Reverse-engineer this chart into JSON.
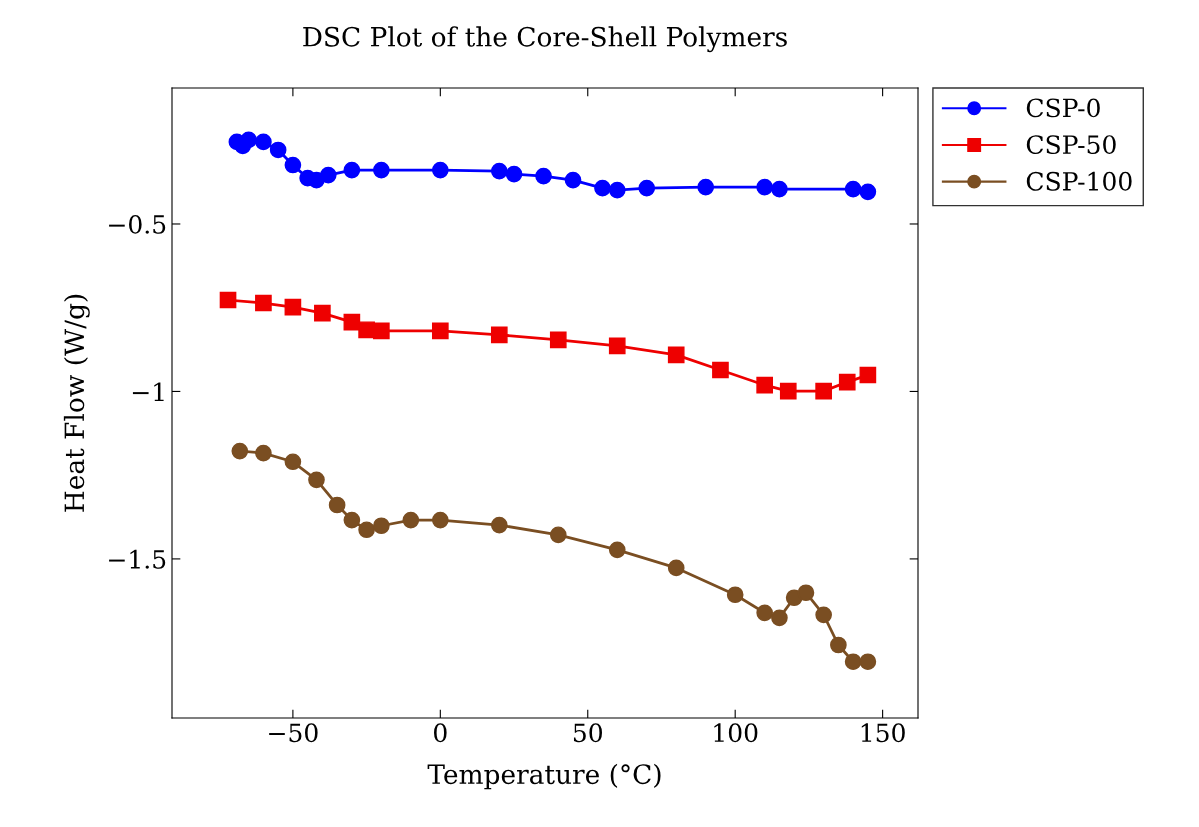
{
  "chart_data": {
    "type": "line",
    "title": "DSC Plot of the Core-Shell Polymers",
    "xlabel": "Temperature (°C)",
    "ylabel": "Heat Flow (W/g)",
    "series": [
      {
        "name": "CSP-0",
        "color": "#0000ff",
        "marker": "circle",
        "x": [
          -69,
          -67,
          -65,
          -60,
          -55,
          -50,
          -45,
          -42,
          -38,
          -30,
          -20,
          0,
          20,
          25,
          35,
          45,
          55,
          60,
          70,
          90,
          110,
          115,
          140,
          145
        ],
        "values": [
          -0.255,
          -0.267,
          -0.249,
          -0.255,
          -0.279,
          -0.324,
          -0.363,
          -0.369,
          -0.354,
          -0.339,
          -0.339,
          -0.339,
          -0.342,
          -0.351,
          -0.357,
          -0.369,
          -0.393,
          -0.399,
          -0.393,
          -0.39,
          -0.39,
          -0.396,
          -0.396,
          -0.404
        ]
      },
      {
        "name": "CSP-50",
        "color": "#ee0000",
        "marker": "square",
        "x": [
          -72,
          -60,
          -50,
          -40,
          -30,
          -25,
          -20,
          0,
          20,
          40,
          60,
          80,
          95,
          110,
          118,
          130,
          138,
          145
        ],
        "values": [
          -0.727,
          -0.736,
          -0.748,
          -0.766,
          -0.793,
          -0.816,
          -0.819,
          -0.819,
          -0.831,
          -0.846,
          -0.864,
          -0.891,
          -0.936,
          -0.981,
          -0.999,
          -0.999,
          -0.972,
          -0.951
        ]
      },
      {
        "name": "CSP-100",
        "color": "#7a4e22",
        "marker": "circle",
        "x": [
          -68,
          -60,
          -50,
          -42,
          -35,
          -30,
          -25,
          -20,
          -10,
          0,
          20,
          40,
          60,
          80,
          100,
          110,
          115,
          120,
          124,
          130,
          135,
          140,
          145
        ],
        "values": [
          -1.178,
          -1.184,
          -1.21,
          -1.264,
          -1.339,
          -1.384,
          -1.413,
          -1.401,
          -1.384,
          -1.384,
          -1.399,
          -1.428,
          -1.473,
          -1.527,
          -1.607,
          -1.661,
          -1.676,
          -1.616,
          -1.601,
          -1.667,
          -1.757,
          -1.807,
          -1.807
        ]
      }
    ],
    "xlim": [
      -91,
      162
    ],
    "ylim": [
      -1.975,
      -0.094
    ],
    "xticks": [
      {
        "value": -50,
        "label": "−50"
      },
      0,
      50,
      100,
      150
    ],
    "yticks": [
      {
        "value": -0.5,
        "label": "−0.5"
      },
      {
        "value": -1,
        "label": "−1"
      },
      {
        "value": -1.5,
        "label": "−1.5"
      }
    ],
    "legend": "top right",
    "grid": false,
    "line_style": "solid"
  }
}
